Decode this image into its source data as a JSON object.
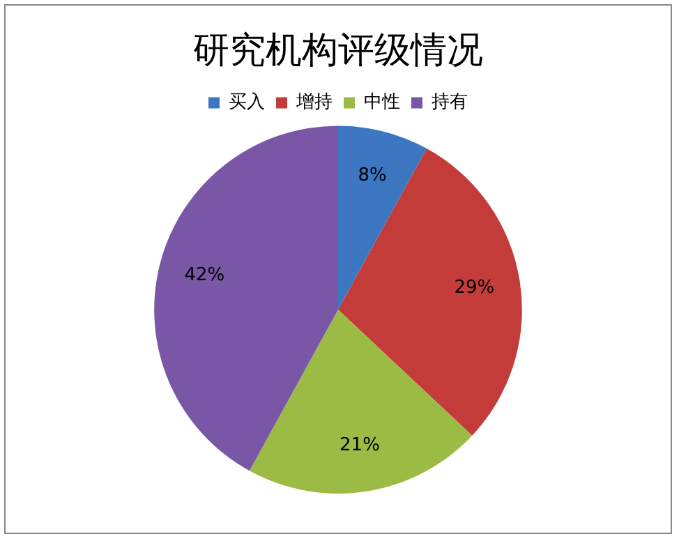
{
  "chart_data": {
    "type": "pie",
    "title": "研究机构评级情况",
    "categories": [
      "买入",
      "增持",
      "中性",
      "持有"
    ],
    "values": [
      8,
      29,
      21,
      42
    ],
    "colors": [
      "#3d77c2",
      "#c43c3a",
      "#9bbb45",
      "#7a56a6"
    ],
    "value_labels": [
      "8%",
      "29%",
      "21%",
      "42%"
    ],
    "legend": "top"
  }
}
